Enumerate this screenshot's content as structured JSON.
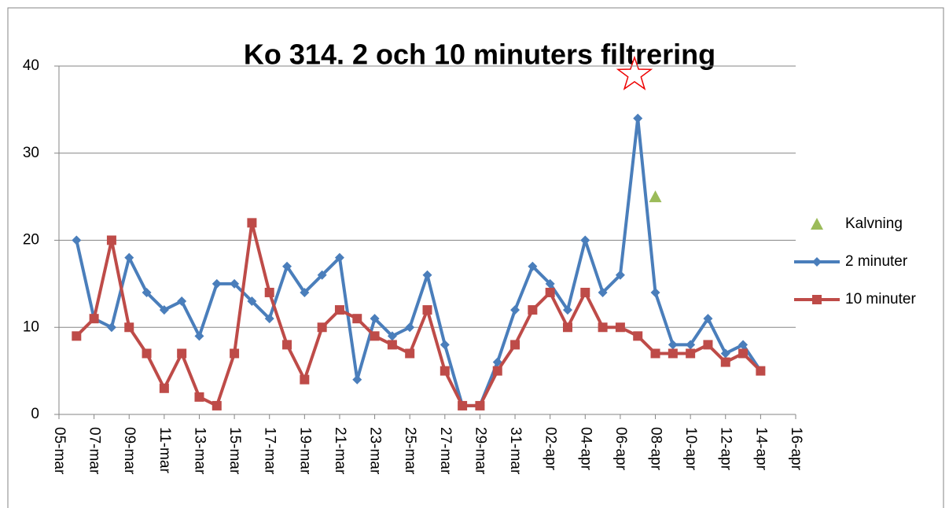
{
  "chart_data": {
    "type": "line",
    "title": "Ko 314. 2 och 10 minuters filtrering",
    "categories": [
      "05-mar",
      null,
      "07-mar",
      null,
      "09-mar",
      null,
      "11-mar",
      null,
      "13-mar",
      null,
      "15-mar",
      null,
      "17-mar",
      null,
      "19-mar",
      null,
      "21-mar",
      null,
      "23-mar",
      null,
      "25-mar",
      null,
      "27-mar",
      null,
      "29-mar",
      null,
      "31-mar",
      null,
      "02-apr",
      null,
      "04-apr",
      null,
      "06-apr",
      null,
      "08-apr",
      null,
      "10-apr",
      null,
      "12-apr",
      null,
      "14-apr",
      null,
      "16-apr"
    ],
    "series": [
      {
        "name": "Kalvning",
        "color": "#9bbb59",
        "marker": "triangle",
        "line": false,
        "values": [
          null,
          null,
          null,
          null,
          null,
          null,
          null,
          null,
          null,
          null,
          null,
          null,
          null,
          null,
          null,
          null,
          null,
          null,
          null,
          null,
          null,
          null,
          null,
          null,
          null,
          null,
          null,
          null,
          null,
          null,
          null,
          null,
          null,
          null,
          25,
          null,
          null,
          null,
          null,
          null,
          null,
          null,
          null
        ]
      },
      {
        "name": "2 minuter",
        "color": "#4a7ebb",
        "marker": "diamond",
        "line": true,
        "values": [
          null,
          20,
          11,
          10,
          18,
          14,
          12,
          13,
          9,
          15,
          15,
          13,
          11,
          17,
          14,
          16,
          18,
          4,
          11,
          9,
          10,
          16,
          8,
          1,
          1,
          6,
          12,
          17,
          15,
          12,
          20,
          14,
          16,
          34,
          14,
          8,
          8,
          11,
          7,
          8,
          5,
          null,
          null
        ]
      },
      {
        "name": "10 minuter",
        "color": "#be4b48",
        "marker": "square",
        "line": true,
        "values": [
          null,
          9,
          11,
          20,
          10,
          7,
          3,
          7,
          2,
          1,
          7,
          22,
          14,
          8,
          4,
          10,
          12,
          11,
          9,
          8,
          7,
          12,
          5,
          1,
          1,
          5,
          8,
          12,
          14,
          10,
          14,
          10,
          10,
          9,
          7,
          7,
          7,
          8,
          6,
          7,
          5,
          null,
          null
        ]
      }
    ],
    "ylim": [
      0,
      40
    ],
    "yticks": [
      0,
      10,
      20,
      30,
      40
    ],
    "grid": true,
    "legend": "right"
  }
}
